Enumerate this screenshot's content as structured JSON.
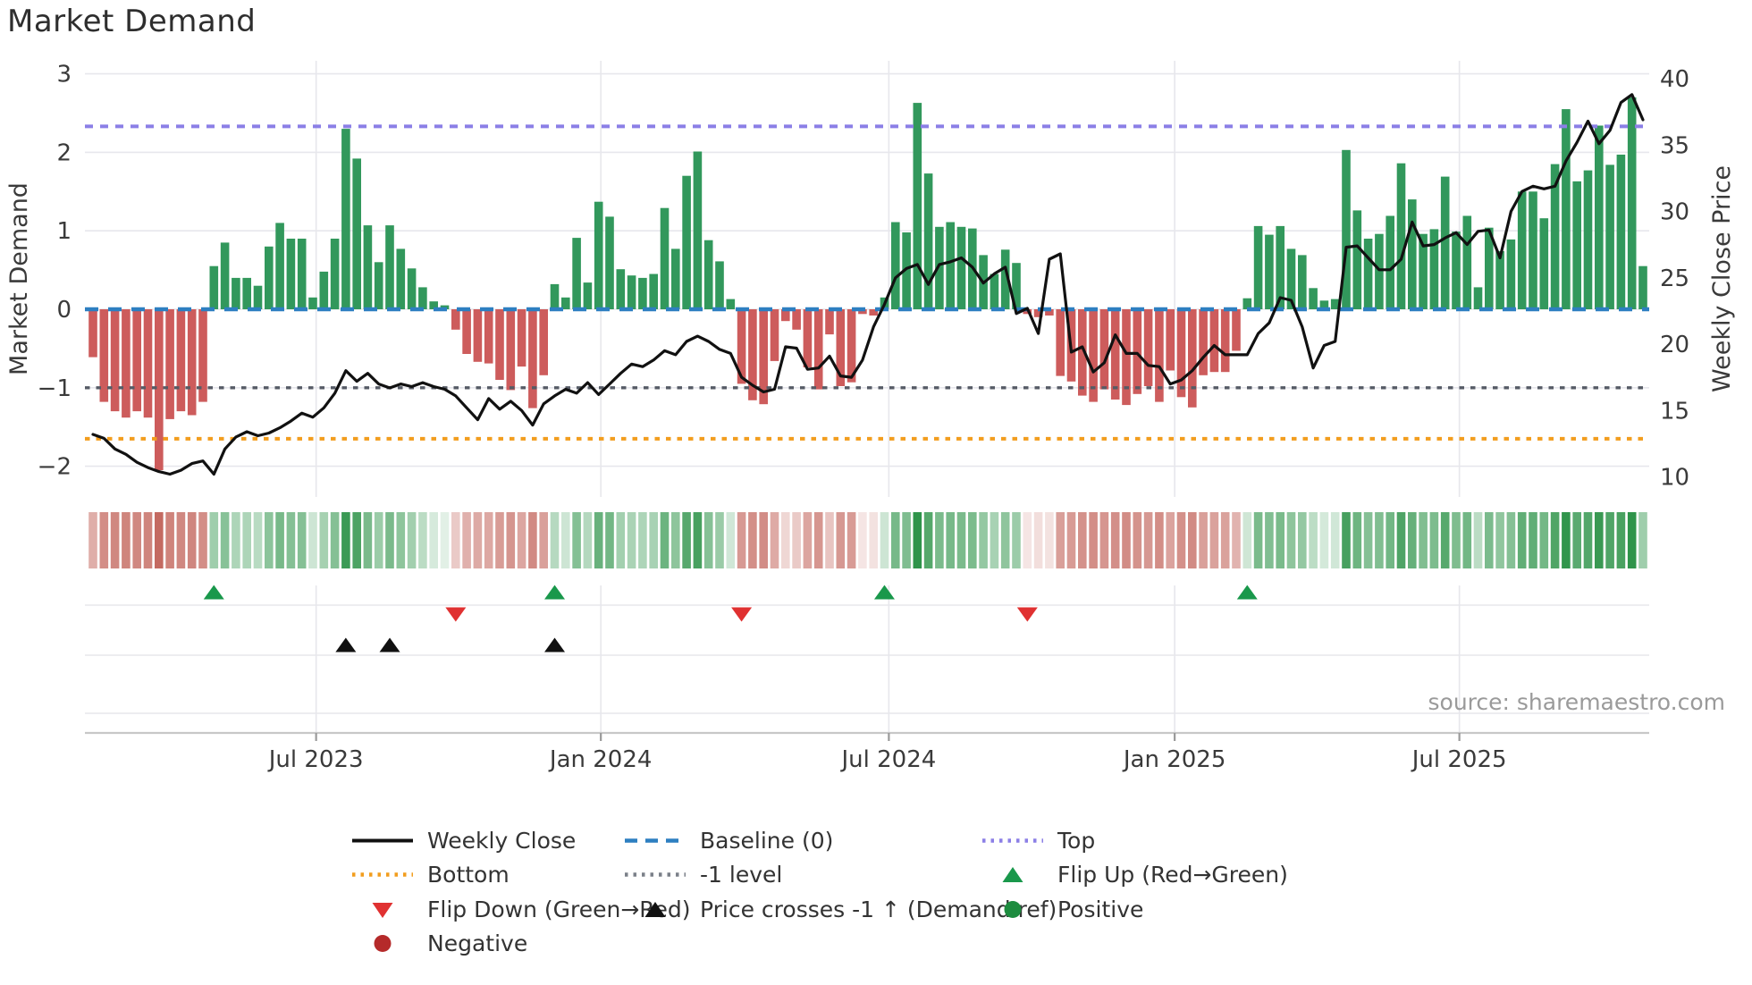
{
  "title": "Market Demand",
  "source_text": "source: sharemaestro.com",
  "axes": {
    "left_label": "Market Demand",
    "right_label": "Weekly Close Price",
    "left_ticks": [
      "3",
      "2",
      "1",
      "0",
      "−1",
      "−2"
    ],
    "left_tick_values": [
      3,
      2,
      1,
      0,
      -1,
      -2
    ],
    "right_ticks": [
      "40",
      "35",
      "30",
      "25",
      "20",
      "15",
      "10"
    ],
    "right_tick_values": [
      40,
      35,
      30,
      25,
      20,
      15,
      10
    ],
    "x_tick_labels": [
      "Jul 2023",
      "Jan 2024",
      "Jul 2024",
      "Jan 2025",
      "Jul 2025"
    ],
    "x_tick_positions": [
      20.3,
      46.2,
      72.4,
      98.4,
      124.3
    ]
  },
  "colors": {
    "positive_bar": "#32985c",
    "negative_bar": "#cd5c5c",
    "price_line": "#111111",
    "baseline": "#2d7fc1",
    "top_line": "#8b7fe6",
    "minus1_line": "#565b66",
    "bottom_line": "#f29d1e",
    "grid": "#e7e7ec",
    "axis_line": "#c8c8c8",
    "tick_text": "#3a3a3a",
    "source_text": "#9a9a9a",
    "flip_up": "#19984b",
    "flip_down": "#e03131",
    "price_cross": "#111111",
    "heat_negative_base": "#bd574d",
    "heat_positive_base": "#2f944a",
    "legend_negative_dot": "#b52a2a",
    "legend_positive_dot": "#1d8c3f",
    "legend_minus1": "#7b8089"
  },
  "legend": {
    "items": [
      {
        "col": 1,
        "name": "weekly-close",
        "kind": "line-solid",
        "color_key": "price_line",
        "label": "Weekly Close"
      },
      {
        "col": 1,
        "name": "bottom",
        "kind": "line-dotted",
        "color_key": "bottom_line",
        "label": "Bottom"
      },
      {
        "col": 1,
        "name": "flip-down",
        "kind": "tri-down",
        "color_key": "flip_down",
        "label": "Flip Down (Green→Red)"
      },
      {
        "col": 1,
        "name": "negative",
        "kind": "circle",
        "color_key": "legend_negative_dot",
        "label": "Negative"
      },
      {
        "col": 2,
        "name": "baseline",
        "kind": "line-dashed",
        "color_key": "baseline",
        "label": "Baseline (0)"
      },
      {
        "col": 2,
        "name": "minus1-level",
        "kind": "line-dotted",
        "color_key": "legend_minus1",
        "label": "-1 level"
      },
      {
        "col": 2,
        "name": "price-crosses",
        "kind": "tri-up",
        "color_key": "price_cross",
        "label": "Price crosses -1 ↑ (Demand ref)"
      },
      {
        "col": 3,
        "name": "top",
        "kind": "line-dotted",
        "color_key": "top_line",
        "label": "Top"
      },
      {
        "col": 3,
        "name": "flip-up",
        "kind": "tri-up",
        "color_key": "flip_up",
        "label": "Flip Up (Red→Green)"
      },
      {
        "col": 3,
        "name": "positive",
        "kind": "circle",
        "color_key": "legend_positive_dot",
        "label": "Positive"
      }
    ]
  },
  "chart_data": {
    "type": "bar",
    "description": "Weekly Market Demand bars (left axis, green positive / red negative) with Weekly Close price line (right axis), demand heatmap strip and flip/cross event markers",
    "left_ylim": [
      -2.6,
      3.2
    ],
    "right_ylim": [
      10,
      40
    ],
    "grid": true,
    "ref_lines": {
      "top": {
        "value": 2.33,
        "label": "Top"
      },
      "baseline": {
        "value": 0,
        "label": "Baseline (0)"
      },
      "minus1": {
        "value": -1,
        "label": "-1 level"
      },
      "bottom": {
        "value": -1.65,
        "label": "Bottom"
      }
    },
    "series": [
      {
        "name": "Market Demand",
        "axis": "left",
        "values": [
          -0.61,
          -1.18,
          -1.3,
          -1.38,
          -1.3,
          -1.38,
          -2.05,
          -1.4,
          -1.3,
          -1.35,
          -1.18,
          0.55,
          0.85,
          0.4,
          0.4,
          0.3,
          0.8,
          1.1,
          0.9,
          0.9,
          0.15,
          0.48,
          0.9,
          2.3,
          1.92,
          1.07,
          0.6,
          1.07,
          0.77,
          0.52,
          0.28,
          0.1,
          0.05,
          -0.26,
          -0.57,
          -0.67,
          -0.69,
          -0.9,
          -1.03,
          -0.73,
          -1.26,
          -0.84,
          0.32,
          0.15,
          0.91,
          0.34,
          1.37,
          1.18,
          0.51,
          0.43,
          0.4,
          0.45,
          1.29,
          0.77,
          1.7,
          2.01,
          0.88,
          0.61,
          0.13,
          -0.95,
          -1.16,
          -1.21,
          -0.66,
          -0.15,
          -0.26,
          -0.74,
          -1.02,
          -0.32,
          -0.98,
          -0.93,
          -0.06,
          -0.08,
          0.15,
          1.11,
          0.98,
          2.63,
          1.73,
          1.05,
          1.11,
          1.05,
          1.03,
          0.69,
          0.45,
          0.76,
          0.59,
          -0.06,
          -0.1,
          -0.08,
          -0.85,
          -0.92,
          -1.1,
          -1.18,
          -1.02,
          -1.15,
          -1.22,
          -1.08,
          -0.98,
          -1.18,
          -0.78,
          -1.12,
          -1.25,
          -0.84,
          -0.8,
          -0.8,
          -0.53,
          0.14,
          1.06,
          0.95,
          1.06,
          0.77,
          0.69,
          0.27,
          0.11,
          0.13,
          2.03,
          1.26,
          0.9,
          0.96,
          1.19,
          1.86,
          1.4,
          0.96,
          1.02,
          1.69,
          0.99,
          1.19,
          0.28,
          1.04,
          0.74,
          0.89,
          1.5,
          1.5,
          1.16,
          1.85,
          2.55,
          1.63,
          1.77,
          2.34,
          1.84,
          1.97,
          2.7,
          0.55
        ]
      },
      {
        "name": "Weekly Close",
        "axis": "right",
        "values": [
          13.2,
          12.9,
          12.1,
          11.7,
          11.1,
          10.7,
          10.4,
          10.2,
          10.5,
          11.0,
          11.2,
          10.2,
          12.1,
          13.0,
          13.4,
          13.1,
          13.3,
          13.7,
          14.2,
          14.8,
          14.5,
          15.2,
          16.3,
          18.0,
          17.2,
          17.8,
          17.0,
          16.7,
          17.0,
          16.8,
          17.1,
          16.8,
          16.6,
          16.1,
          15.2,
          14.3,
          15.9,
          15.1,
          15.7,
          15.0,
          13.9,
          15.5,
          16.1,
          16.6,
          16.3,
          17.1,
          16.2,
          17.0,
          17.8,
          18.5,
          18.3,
          18.8,
          19.5,
          19.2,
          20.2,
          20.6,
          20.2,
          19.6,
          19.3,
          17.5,
          16.9,
          16.4,
          16.6,
          19.8,
          19.7,
          18.1,
          18.2,
          19.1,
          17.6,
          17.5,
          18.8,
          21.3,
          23.0,
          25.0,
          25.7,
          26.0,
          24.5,
          26.0,
          26.2,
          26.5,
          25.8,
          24.6,
          25.3,
          25.8,
          22.3,
          22.7,
          20.8,
          26.4,
          26.8,
          19.4,
          19.8,
          17.9,
          18.6,
          20.7,
          19.3,
          19.3,
          18.4,
          18.3,
          17.0,
          17.3,
          18.0,
          19.0,
          19.9,
          19.2,
          19.2,
          19.2,
          20.8,
          21.6,
          23.5,
          23.3,
          21.3,
          18.2,
          19.9,
          20.2,
          27.3,
          27.4,
          26.5,
          25.6,
          25.6,
          26.4,
          29.2,
          27.4,
          27.5,
          28.0,
          28.4,
          27.5,
          28.5,
          28.6,
          26.5,
          30.0,
          31.5,
          31.9,
          31.7,
          31.9,
          33.8,
          35.2,
          36.8,
          35.1,
          36.1,
          38.2,
          38.8,
          36.9
        ]
      }
    ],
    "markers": {
      "flip_up_indices": [
        11,
        42,
        72,
        105
      ],
      "flip_down_indices": [
        33,
        59,
        85
      ],
      "price_cross_indices": [
        23,
        27,
        42
      ]
    }
  }
}
